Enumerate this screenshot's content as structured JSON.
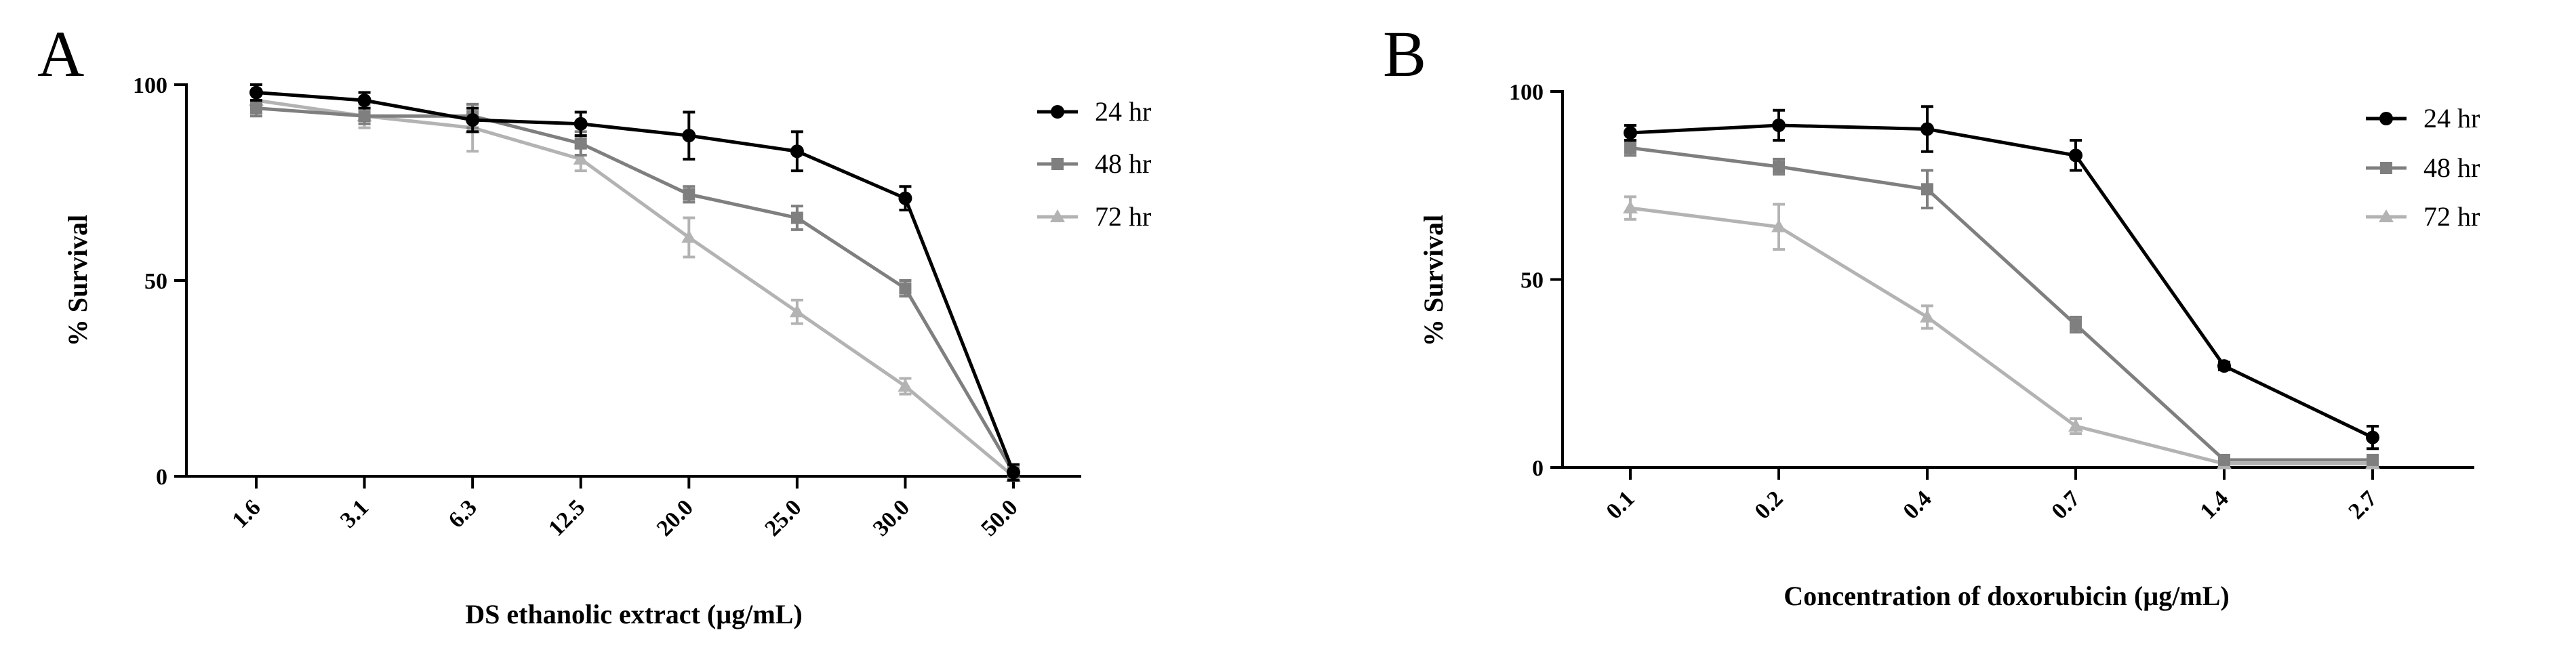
{
  "chart_data": [
    {
      "panel_label": "A",
      "type": "line",
      "categories": [
        "1.6",
        "3.1",
        "6.3",
        "12.5",
        "20.0",
        "25.0",
        "30.0",
        "50.0"
      ],
      "xlabel": "DS ethanolic extract (µg/mL)",
      "ylabel": "% Survival",
      "ylim": [
        0,
        100
      ],
      "yticks": [
        "0",
        "50",
        "100"
      ],
      "grid": false,
      "legend_position": "top-right",
      "series": [
        {
          "name": "24 hr",
          "color": "#000000",
          "marker": "circle",
          "values": [
            98,
            96,
            91,
            90,
            87,
            83,
            71,
            1
          ],
          "errors": [
            2,
            2,
            3,
            3,
            6,
            5,
            3,
            2
          ]
        },
        {
          "name": "48 hr",
          "color": "#7f7f7f",
          "marker": "square",
          "values": [
            94,
            92,
            92,
            85,
            72,
            66,
            48,
            1
          ],
          "errors": [
            2,
            2,
            3,
            3,
            2,
            3,
            2,
            1
          ]
        },
        {
          "name": "72 hr",
          "color": "#b3b3b3",
          "marker": "triangle",
          "values": [
            96,
            92,
            89,
            81,
            61,
            42,
            23,
            0
          ],
          "errors": [
            2,
            3,
            6,
            3,
            5,
            3,
            2,
            1
          ]
        }
      ]
    },
    {
      "panel_label": "B",
      "type": "line",
      "categories": [
        "0.1",
        "0.2",
        "0.4",
        "0.7",
        "1.4",
        "2.7"
      ],
      "xlabel": "Concentration of doxorubicin (µg/mL)",
      "ylabel": "% Survival",
      "ylim": [
        0,
        100
      ],
      "yticks": [
        "0",
        "50",
        "100"
      ],
      "grid": false,
      "legend_position": "top-right",
      "series": [
        {
          "name": "24 hr",
          "color": "#000000",
          "marker": "circle",
          "values": [
            89,
            91,
            90,
            83,
            27,
            8
          ],
          "errors": [
            2,
            4,
            6,
            4,
            1,
            3
          ]
        },
        {
          "name": "48 hr",
          "color": "#7f7f7f",
          "marker": "square",
          "values": [
            85,
            80,
            74,
            38,
            2,
            2
          ],
          "errors": [
            2,
            2,
            5,
            2,
            1,
            1
          ]
        },
        {
          "name": "72 hr",
          "color": "#b3b3b3",
          "marker": "triangle",
          "values": [
            69,
            64,
            40,
            11,
            1,
            1
          ],
          "errors": [
            3,
            6,
            3,
            2,
            1,
            1
          ]
        }
      ]
    }
  ]
}
